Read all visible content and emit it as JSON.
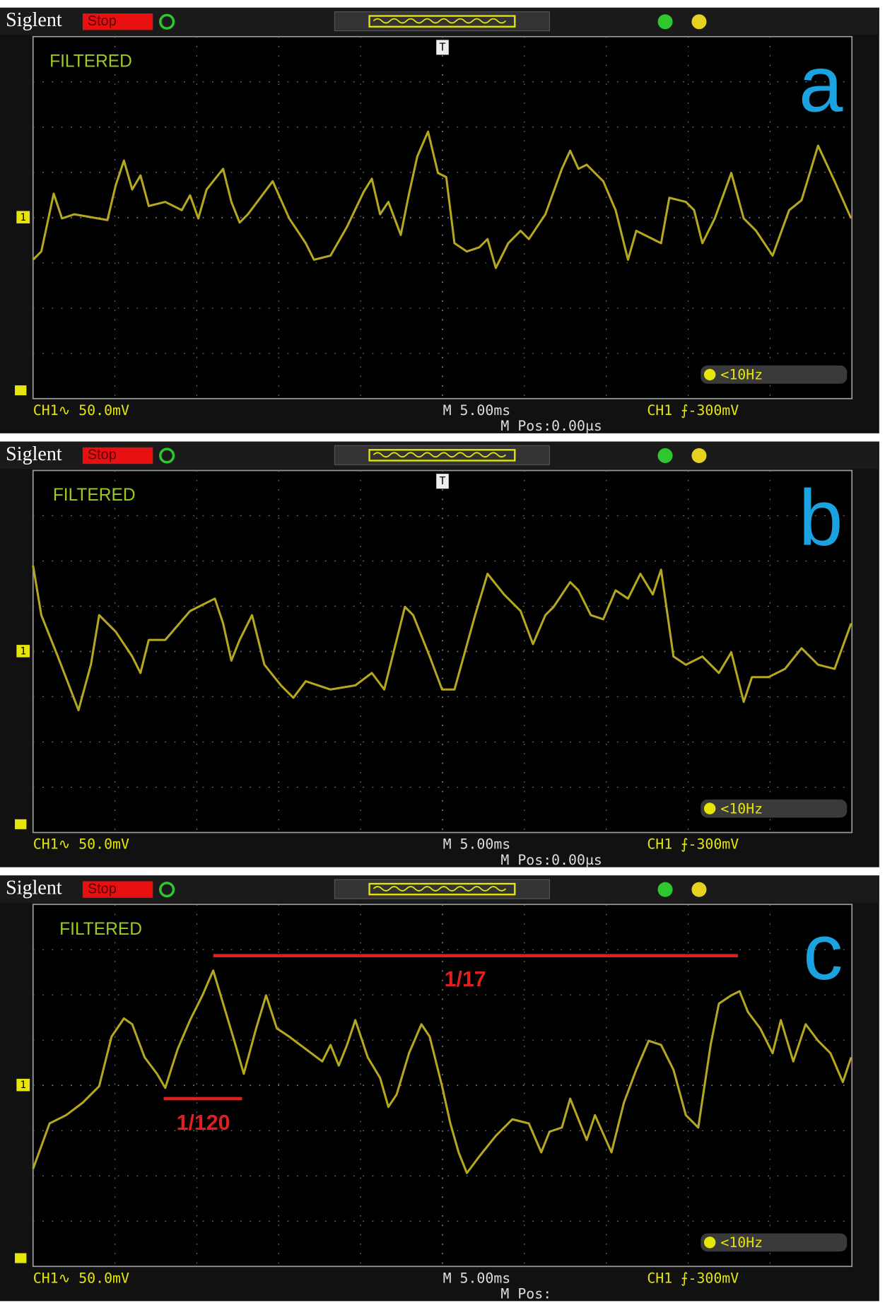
{
  "panels": [
    {
      "brand": "Siglent",
      "status": "Stop",
      "trigger_marker": "T",
      "label": "FILTERED",
      "letter": "a",
      "channel_marker": "1",
      "trigger_freq": "<10Hz",
      "channel_scale": "CH1∿ 50.0mV",
      "timebase": "M 5.00ms",
      "trigger_level": "CH1 ⨍-300mV",
      "position": "M Pos:0.00μs"
    },
    {
      "brand": "Siglent",
      "status": "Stop",
      "trigger_marker": "T",
      "label": "FILTERED",
      "letter": "b",
      "channel_marker": "1",
      "trigger_freq": "<10Hz",
      "channel_scale": "CH1∿ 50.0mV",
      "timebase": "M 5.00ms",
      "trigger_level": "CH1 ⨍-300mV",
      "position": "M Pos:0.00μs"
    },
    {
      "brand": "Siglent",
      "status": "Stop",
      "label": "FILTERED",
      "letter": "c",
      "channel_marker": "1",
      "trigger_freq": "<10Hz",
      "channel_scale": "CH1∿ 50.0mV",
      "timebase": "M 5.00ms",
      "trigger_level": "CH1 ⨍-300mV",
      "position": "M Pos:",
      "annotations": [
        {
          "label": "1/17"
        },
        {
          "label": "1/120"
        }
      ]
    }
  ]
}
